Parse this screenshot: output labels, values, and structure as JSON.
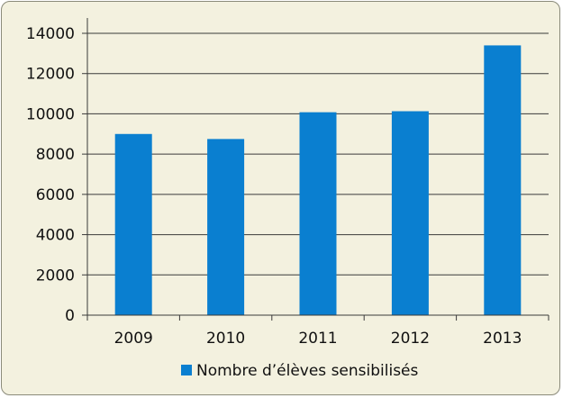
{
  "chart_data": {
    "type": "bar",
    "categories": [
      "2009",
      "2010",
      "2011",
      "2012",
      "2013"
    ],
    "series": [
      {
        "name": "Nombre d’élèves sensibilisés",
        "values": [
          9000,
          8750,
          10080,
          10130,
          13400
        ]
      }
    ],
    "ylim": [
      0,
      14000
    ],
    "yticks": [
      "0",
      "2000",
      "4000",
      "6000",
      "8000",
      "10000",
      "12000",
      "14000"
    ],
    "grid": true,
    "legend_position": "bottom",
    "colors": {
      "bar": "#0a7fd0",
      "background": "#f3f1df",
      "grid": "#3a3a3a"
    }
  }
}
